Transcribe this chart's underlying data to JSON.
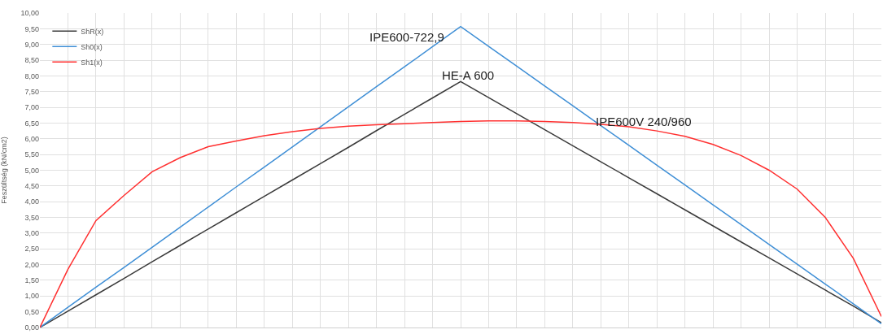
{
  "chart_data": {
    "type": "line",
    "ylabel": "Feszültség (kN/cm2)",
    "categories": [
      null,
      null,
      null,
      null,
      null,
      null,
      null,
      null,
      null,
      null,
      null,
      null,
      null,
      null,
      null,
      null,
      null,
      null,
      null,
      null,
      null,
      null,
      null,
      null,
      null,
      null,
      null,
      null,
      null,
      null,
      null
    ],
    "series": [
      {
        "name": "ShR(x)",
        "color": "#3a3a3a",
        "values": [
          0,
          0.52,
          1.04,
          1.56,
          2.09,
          2.61,
          3.13,
          3.65,
          4.17,
          4.69,
          5.21,
          5.73,
          6.26,
          6.78,
          7.3,
          7.82,
          7.31,
          6.8,
          6.29,
          5.78,
          5.27,
          4.76,
          4.25,
          3.74,
          3.23,
          2.72,
          2.21,
          1.7,
          1.19,
          0.68,
          0.15
        ]
      },
      {
        "name": "Sh0(x)",
        "color": "#3f8fd6",
        "values": [
          0,
          0.64,
          1.28,
          1.91,
          2.55,
          3.19,
          3.83,
          4.47,
          5.1,
          5.74,
          6.38,
          7.02,
          7.66,
          8.29,
          8.93,
          9.57,
          8.94,
          8.31,
          7.68,
          7.05,
          6.42,
          5.79,
          5.16,
          4.53,
          3.9,
          3.27,
          2.64,
          2.01,
          1.38,
          0.75,
          0.12
        ]
      },
      {
        "name": "Sh1(x)",
        "color": "#ff3030",
        "values": [
          0,
          1.85,
          3.4,
          4.2,
          4.95,
          5.4,
          5.75,
          5.93,
          6.1,
          6.23,
          6.33,
          6.4,
          6.45,
          6.48,
          6.52,
          6.55,
          6.57,
          6.57,
          6.55,
          6.52,
          6.46,
          6.38,
          6.25,
          6.08,
          5.82,
          5.47,
          5.0,
          4.4,
          3.5,
          2.2,
          0.35
        ]
      }
    ],
    "ylim": [
      0,
      10
    ],
    "yticks": [
      {
        "value": 0,
        "label": "0,00"
      },
      {
        "value": 0.5,
        "label": "0,50"
      },
      {
        "value": 1,
        "label": "1,00"
      },
      {
        "value": 1.5,
        "label": "1,50"
      },
      {
        "value": 2,
        "label": "2,00"
      },
      {
        "value": 2.5,
        "label": "2,50"
      },
      {
        "value": 3,
        "label": "3,00"
      },
      {
        "value": 3.5,
        "label": "3,50"
      },
      {
        "value": 4,
        "label": "4,00"
      },
      {
        "value": 4.5,
        "label": "4,50"
      },
      {
        "value": 5,
        "label": "5,00"
      },
      {
        "value": 5.5,
        "label": "5,50"
      },
      {
        "value": 6,
        "label": "6,00"
      },
      {
        "value": 6.5,
        "label": "6,50"
      },
      {
        "value": 7,
        "label": "7,00"
      },
      {
        "value": 7.5,
        "label": "7,50"
      },
      {
        "value": 8,
        "label": "8,00"
      },
      {
        "value": 8.5,
        "label": "8,50"
      },
      {
        "value": 9,
        "label": "9,00"
      },
      {
        "value": 9.5,
        "label": "9,50"
      },
      {
        "value": 10,
        "label": "10,00"
      }
    ],
    "annotations": [
      "IPE600-722,9",
      "HE-A 600",
      "IPE600V 240/960"
    ],
    "grid": true,
    "legend": "top left",
    "marker": "none",
    "line_style": "solid"
  }
}
